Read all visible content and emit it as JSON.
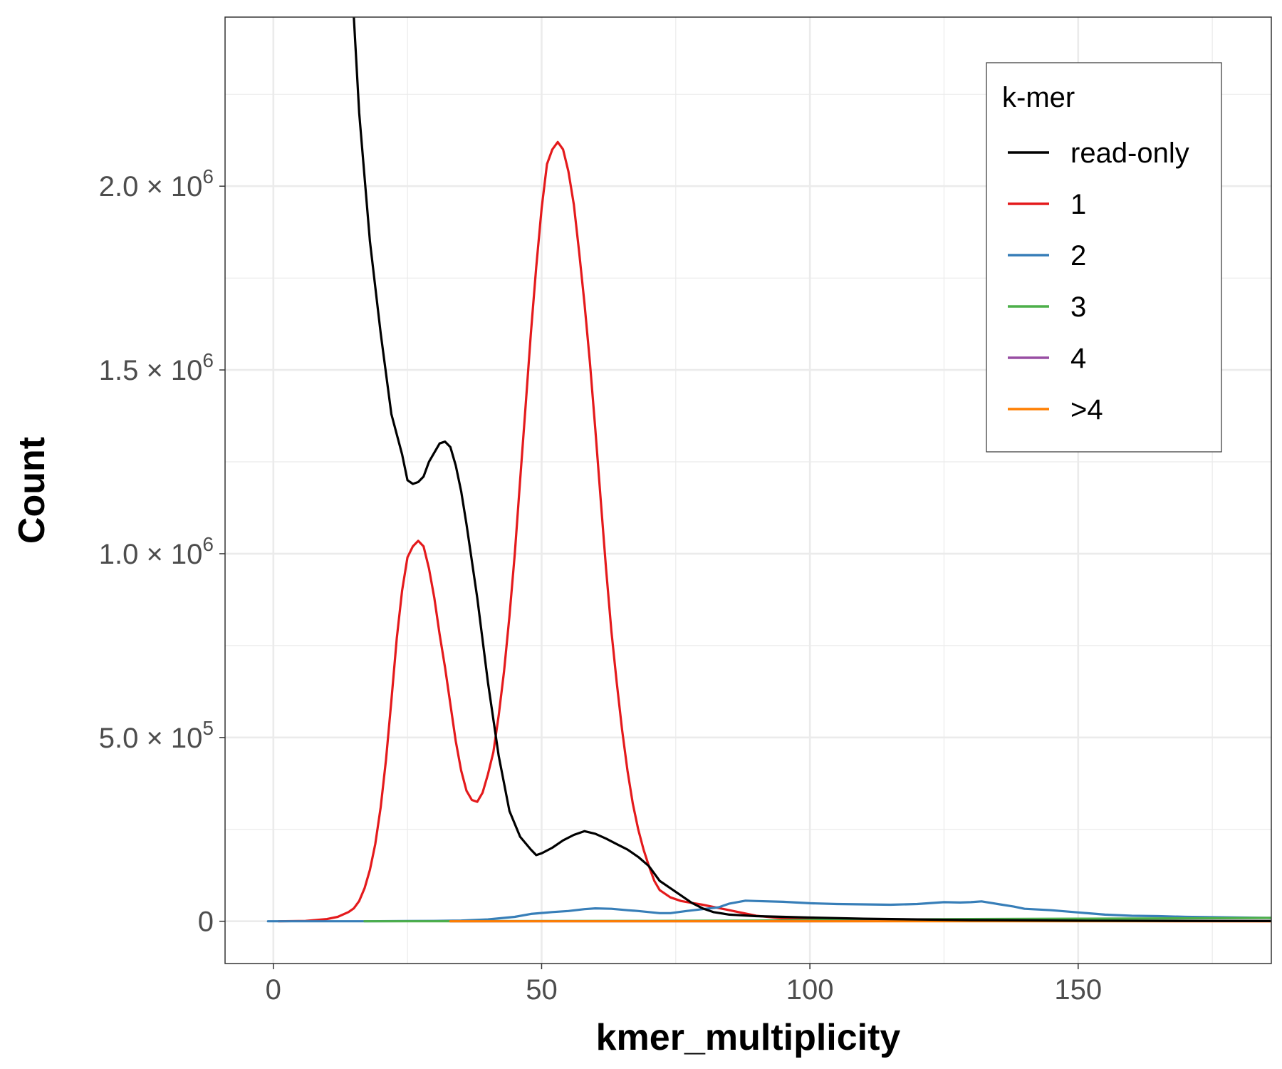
{
  "chart_data": {
    "type": "line",
    "xlabel": "kmer_multiplicity",
    "ylabel": "Count",
    "xlim": [
      -9,
      186
    ],
    "ylim": [
      -115000,
      2460000
    ],
    "x_ticks": [
      {
        "value": 0,
        "label": "0"
      },
      {
        "value": 50,
        "label": "50"
      },
      {
        "value": 100,
        "label": "100"
      },
      {
        "value": 150,
        "label": "150"
      }
    ],
    "y_ticks": [
      {
        "value": 0,
        "mantissa": "0",
        "exponent": ""
      },
      {
        "value": 500000,
        "mantissa": "5.0 × 10",
        "exponent": "5"
      },
      {
        "value": 1000000,
        "mantissa": "1.0 × 10",
        "exponent": "6"
      },
      {
        "value": 1500000,
        "mantissa": "1.5 × 10",
        "exponent": "6"
      },
      {
        "value": 2000000,
        "mantissa": "2.0 × 10",
        "exponent": "6"
      }
    ],
    "grid": true,
    "legend": {
      "title": "k-mer",
      "position": "top-right"
    },
    "series": [
      {
        "name": "read-only",
        "color": "#000000",
        "points": [
          [
            15,
            2460000
          ],
          [
            16,
            2200000
          ],
          [
            18,
            1850000
          ],
          [
            20,
            1600000
          ],
          [
            22,
            1380000
          ],
          [
            24,
            1270000
          ],
          [
            25,
            1200000
          ],
          [
            26,
            1190000
          ],
          [
            27,
            1195000
          ],
          [
            28,
            1210000
          ],
          [
            29,
            1250000
          ],
          [
            31,
            1300000
          ],
          [
            32,
            1305000
          ],
          [
            33,
            1290000
          ],
          [
            34,
            1240000
          ],
          [
            35,
            1170000
          ],
          [
            36,
            1080000
          ],
          [
            38,
            880000
          ],
          [
            40,
            650000
          ],
          [
            42,
            450000
          ],
          [
            44,
            300000
          ],
          [
            46,
            230000
          ],
          [
            48,
            195000
          ],
          [
            49,
            180000
          ],
          [
            50,
            185000
          ],
          [
            52,
            200000
          ],
          [
            54,
            220000
          ],
          [
            56,
            235000
          ],
          [
            58,
            245000
          ],
          [
            60,
            238000
          ],
          [
            62,
            225000
          ],
          [
            64,
            210000
          ],
          [
            66,
            195000
          ],
          [
            68,
            175000
          ],
          [
            70,
            150000
          ],
          [
            72,
            110000
          ],
          [
            74,
            90000
          ],
          [
            76,
            70000
          ],
          [
            78,
            50000
          ],
          [
            80,
            35000
          ],
          [
            82,
            25000
          ],
          [
            85,
            18000
          ],
          [
            90,
            14000
          ],
          [
            95,
            12000
          ],
          [
            100,
            10000
          ],
          [
            110,
            7000
          ],
          [
            120,
            5000
          ],
          [
            130,
            3000
          ],
          [
            150,
            1500
          ],
          [
            170,
            800
          ],
          [
            186,
            500
          ]
        ]
      },
      {
        "name": "1",
        "color": "#e41a1c",
        "points": [
          [
            1,
            0
          ],
          [
            6,
            1000
          ],
          [
            10,
            6000
          ],
          [
            12,
            12000
          ],
          [
            14,
            25000
          ],
          [
            15,
            35000
          ],
          [
            16,
            55000
          ],
          [
            17,
            90000
          ],
          [
            18,
            140000
          ],
          [
            19,
            210000
          ],
          [
            20,
            310000
          ],
          [
            21,
            440000
          ],
          [
            22,
            600000
          ],
          [
            23,
            770000
          ],
          [
            24,
            900000
          ],
          [
            25,
            990000
          ],
          [
            26,
            1020000
          ],
          [
            27,
            1035000
          ],
          [
            28,
            1020000
          ],
          [
            29,
            960000
          ],
          [
            30,
            880000
          ],
          [
            31,
            780000
          ],
          [
            32,
            690000
          ],
          [
            33,
            590000
          ],
          [
            34,
            490000
          ],
          [
            35,
            410000
          ],
          [
            36,
            355000
          ],
          [
            37,
            330000
          ],
          [
            38,
            325000
          ],
          [
            39,
            350000
          ],
          [
            40,
            400000
          ],
          [
            41,
            460000
          ],
          [
            42,
            560000
          ],
          [
            43,
            680000
          ],
          [
            44,
            830000
          ],
          [
            45,
            1000000
          ],
          [
            46,
            1200000
          ],
          [
            47,
            1400000
          ],
          [
            48,
            1600000
          ],
          [
            49,
            1780000
          ],
          [
            50,
            1940000
          ],
          [
            51,
            2060000
          ],
          [
            52,
            2100000
          ],
          [
            53,
            2120000
          ],
          [
            54,
            2100000
          ],
          [
            55,
            2040000
          ],
          [
            56,
            1950000
          ],
          [
            57,
            1820000
          ],
          [
            58,
            1680000
          ],
          [
            59,
            1520000
          ],
          [
            60,
            1340000
          ],
          [
            61,
            1150000
          ],
          [
            62,
            960000
          ],
          [
            63,
            790000
          ],
          [
            64,
            650000
          ],
          [
            65,
            520000
          ],
          [
            66,
            410000
          ],
          [
            67,
            320000
          ],
          [
            68,
            250000
          ],
          [
            69,
            195000
          ],
          [
            70,
            150000
          ],
          [
            71,
            110000
          ],
          [
            72,
            85000
          ],
          [
            74,
            65000
          ],
          [
            76,
            55000
          ],
          [
            78,
            50000
          ],
          [
            80,
            45000
          ],
          [
            85,
            30000
          ],
          [
            90,
            15000
          ],
          [
            95,
            8000
          ],
          [
            100,
            5000
          ],
          [
            110,
            4000
          ],
          [
            120,
            2000
          ],
          [
            140,
            1000
          ],
          [
            160,
            500
          ],
          [
            186,
            200
          ]
        ]
      },
      {
        "name": "2",
        "color": "#377eb8",
        "points": [
          [
            -1,
            0
          ],
          [
            5,
            0
          ],
          [
            11,
            0
          ],
          [
            17,
            0
          ],
          [
            25,
            500
          ],
          [
            30,
            1000
          ],
          [
            35,
            2000
          ],
          [
            40,
            5000
          ],
          [
            45,
            12000
          ],
          [
            48,
            20000
          ],
          [
            52,
            25000
          ],
          [
            55,
            28000
          ],
          [
            58,
            33000
          ],
          [
            60,
            35000
          ],
          [
            63,
            34000
          ],
          [
            66,
            30000
          ],
          [
            68,
            28000
          ],
          [
            70,
            25000
          ],
          [
            72,
            22000
          ],
          [
            74,
            22000
          ],
          [
            77,
            28000
          ],
          [
            80,
            33000
          ],
          [
            83,
            38000
          ],
          [
            85,
            48000
          ],
          [
            88,
            56000
          ],
          [
            90,
            55000
          ],
          [
            95,
            53000
          ],
          [
            100,
            49000
          ],
          [
            105,
            47000
          ],
          [
            110,
            46000
          ],
          [
            115,
            45000
          ],
          [
            120,
            47000
          ],
          [
            125,
            52000
          ],
          [
            128,
            51000
          ],
          [
            130,
            52000
          ],
          [
            132,
            54000
          ],
          [
            135,
            47000
          ],
          [
            138,
            40000
          ],
          [
            140,
            34000
          ],
          [
            145,
            30000
          ],
          [
            150,
            24000
          ],
          [
            155,
            18000
          ],
          [
            160,
            15000
          ],
          [
            165,
            14000
          ],
          [
            170,
            12000
          ],
          [
            175,
            11000
          ],
          [
            180,
            10000
          ],
          [
            186,
            9000
          ]
        ]
      },
      {
        "name": "3",
        "color": "#4daf4a",
        "points": [
          [
            17,
            0
          ],
          [
            30,
            0
          ],
          [
            50,
            500
          ],
          [
            70,
            1000
          ],
          [
            90,
            2000
          ],
          [
            110,
            4000
          ],
          [
            130,
            6000
          ],
          [
            150,
            7000
          ],
          [
            170,
            8000
          ],
          [
            186,
            9000
          ]
        ]
      },
      {
        "name": "4",
        "color": "#984ea3",
        "points": [
          [
            33,
            0
          ],
          [
            60,
            0
          ],
          [
            90,
            0
          ],
          [
            120,
            500
          ],
          [
            150,
            800
          ],
          [
            186,
            1000
          ]
        ]
      },
      {
        "name": ">4",
        "color": "#ff7f00",
        "points": [
          [
            33,
            0
          ],
          [
            60,
            0
          ],
          [
            90,
            0
          ],
          [
            120,
            0
          ],
          [
            150,
            0
          ],
          [
            186,
            0
          ]
        ]
      }
    ]
  }
}
